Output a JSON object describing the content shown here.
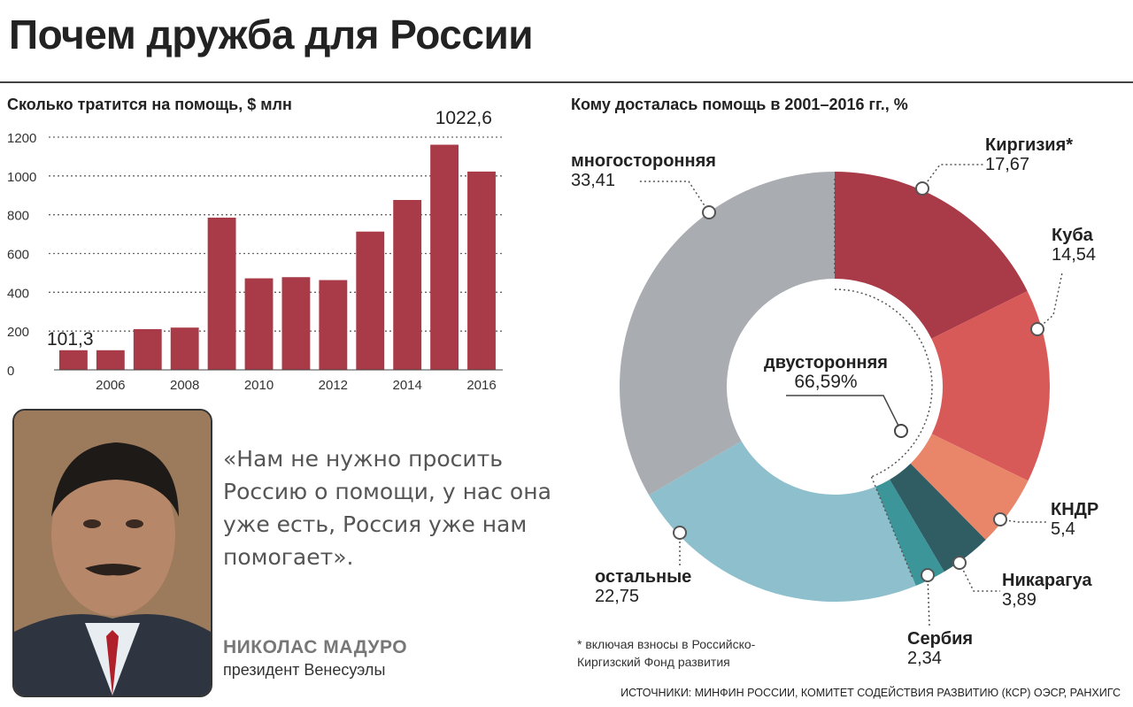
{
  "header": {
    "title": "Почем дружба для России"
  },
  "chart_data": [
    {
      "type": "bar",
      "title": "Сколько тратится на помощь, $ млн",
      "categories": [
        "2005",
        "2006",
        "2007",
        "2008",
        "2009",
        "2010",
        "2011",
        "2012",
        "2013",
        "2014",
        "2015",
        "2016"
      ],
      "values": [
        101.3,
        101.3,
        210,
        218,
        785,
        472,
        478,
        463,
        713,
        876,
        1161,
        1022.6
      ],
      "ylim": [
        0,
        1200
      ],
      "yticks": [
        "0",
        "200",
        "400",
        "600",
        "800",
        "1000",
        "1200"
      ],
      "xticks": [
        "2006",
        "2008",
        "2010",
        "2012",
        "2014",
        "2016"
      ],
      "annotations": [
        "101,3",
        "1022,6"
      ],
      "grid": true,
      "color": "#a93a47"
    },
    {
      "type": "pie",
      "title": "Кому досталась помощь в 2001–2016 гг., %",
      "center_label": "двусторонняя",
      "center_value": "66,59%",
      "slices": [
        {
          "name": "Киргизия*",
          "value": 17.67,
          "label": "17,67",
          "color": "#a93a47"
        },
        {
          "name": "Куба",
          "value": 14.54,
          "label": "14,54",
          "color": "#d85a58"
        },
        {
          "name": "КНДР",
          "value": 5.4,
          "label": "5,4",
          "color": "#e9866a"
        },
        {
          "name": "Никарагуа",
          "value": 3.89,
          "label": "3,89",
          "color": "#2f5d63"
        },
        {
          "name": "Сербия",
          "value": 2.34,
          "label": "2,34",
          "color": "#3c9599"
        },
        {
          "name": "остальные",
          "value": 22.75,
          "label": "22,75",
          "color": "#8ebfcc"
        },
        {
          "name": "многосторонняя",
          "value": 33.41,
          "label": "33,41",
          "color": "#a9adb1"
        }
      ]
    }
  ],
  "quote": {
    "text": "«Нам не нужно просить Россию о помощи, у нас она уже есть, Россия уже нам помогает».",
    "name": "НИКОЛАС МАДУРО",
    "role": "президент Венесуэлы"
  },
  "footnote": "* включая взносы в Российско-Киргизский Фонд развития",
  "sources": "ИСТОЧНИКИ: МИНФИН РОССИИ, КОМИТЕТ СОДЕЙСТВИЯ РАЗВИТИЮ (КСР) ОЭСР, РАНХИГС"
}
